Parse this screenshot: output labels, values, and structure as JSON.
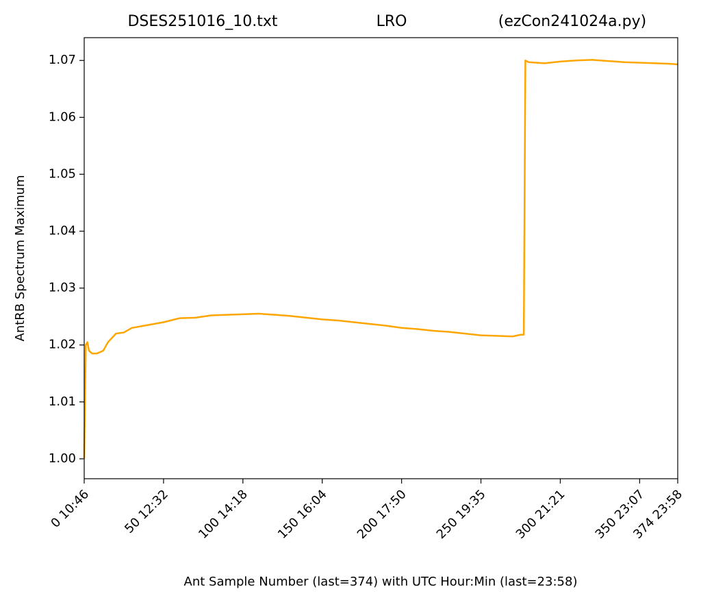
{
  "chart_data": {
    "type": "line",
    "title": [
      "DSES251016_10.txt",
      "LRO",
      "(ezCon241024a.py)"
    ],
    "xlabel": "Ant Sample Number (last=374) with UTC Hour:Min (last=23:58)",
    "ylabel": "AntRB Spectrum Maximum",
    "xlim": [
      0,
      374
    ],
    "xticks": [
      {
        "value": 0,
        "label": "0  10:46"
      },
      {
        "value": 50,
        "label": "50  12:32"
      },
      {
        "value": 100,
        "label": "100  14:18"
      },
      {
        "value": 150,
        "label": "150  16:04"
      },
      {
        "value": 200,
        "label": "200  17:50"
      },
      {
        "value": 250,
        "label": "250  19:35"
      },
      {
        "value": 300,
        "label": "300  21:21"
      },
      {
        "value": 350,
        "label": "350  23:07"
      },
      {
        "value": 374,
        "label": "374  23:58"
      }
    ],
    "ylim": [
      0.9965,
      1.074
    ],
    "yticks": [
      {
        "value": 1,
        "label": "1.00"
      },
      1.01,
      1.02,
      1.03,
      1.04,
      1.05,
      1.06,
      1.07
    ],
    "grid": false,
    "series": [
      {
        "name": "AntRB",
        "color": "#ffa500",
        "x": [
          0,
          1,
          2,
          3,
          5,
          8,
          12,
          15,
          20,
          25,
          30,
          40,
          50,
          60,
          70,
          80,
          90,
          100,
          110,
          120,
          130,
          140,
          150,
          160,
          170,
          180,
          190,
          200,
          210,
          220,
          230,
          240,
          250,
          260,
          270,
          275,
          277,
          278,
          280,
          290,
          300,
          310,
          320,
          330,
          340,
          350,
          360,
          370,
          374
        ],
        "values": [
          1.0,
          1.02,
          1.0205,
          1.019,
          1.0185,
          1.0185,
          1.019,
          1.0205,
          1.022,
          1.0222,
          1.023,
          1.0235,
          1.024,
          1.0247,
          1.0248,
          1.0252,
          1.0253,
          1.0254,
          1.0255,
          1.0253,
          1.0251,
          1.0248,
          1.0245,
          1.0243,
          1.024,
          1.0237,
          1.0234,
          1.023,
          1.0228,
          1.0225,
          1.0223,
          1.022,
          1.0217,
          1.0216,
          1.0215,
          1.0218,
          1.0218,
          1.07,
          1.0697,
          1.0695,
          1.0698,
          1.07,
          1.0701,
          1.0699,
          1.0697,
          1.0696,
          1.0695,
          1.0694,
          1.0693
        ]
      }
    ]
  }
}
